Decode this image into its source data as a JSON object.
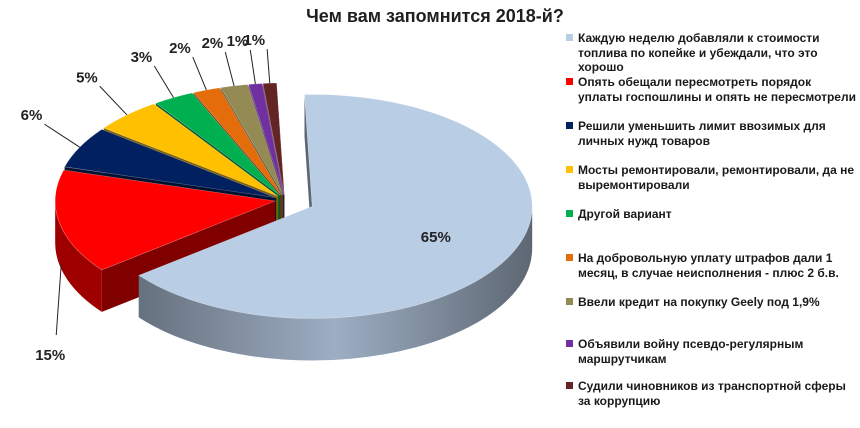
{
  "chart_data": {
    "type": "pie",
    "style": "3d-exploded",
    "title": "Чем вам запомнится 2018-й?",
    "legend_position": "right",
    "slices": [
      {
        "label": "Каждую неделю добавляли к стоимости топлива по копейке и убеждали, что это хорошо",
        "value": 65,
        "display": "65%",
        "color": "#b9cde5"
      },
      {
        "label": "Опять обещали пересмотреть порядок уплаты госпошлины и опять не пересмотрели",
        "value": 15,
        "display": "15%",
        "color": "#ff0000"
      },
      {
        "label": "Решили уменьшить лимит ввозимых для личных нужд товаров",
        "value": 6,
        "display": "6%",
        "color": "#002060"
      },
      {
        "label": "Мосты ремонтировали, ремонтировали, да не выремонтировали",
        "value": 5,
        "display": "5%",
        "color": "#ffc000"
      },
      {
        "label": "Другой вариант",
        "value": 3,
        "display": "3%",
        "color": "#00b050"
      },
      {
        "label": "На добровольную уплату штрафов дали 1 месяц, в случае неисполнения - плюс 2 б.в.",
        "value": 2,
        "display": "2%",
        "color": "#e46c0a"
      },
      {
        "label": "Ввели кредит на покупку Geely под 1,9%",
        "value": 2,
        "display": "2%",
        "color": "#948a54"
      },
      {
        "label": "Объявили войну псевдо-регулярным маршрутчикам",
        "value": 1,
        "display": "1%",
        "color": "#7030a0"
      },
      {
        "label": "Судили чиновников из транспортной сферы за коррупцию",
        "value": 1,
        "display": "1%",
        "color": "#632523"
      }
    ]
  }
}
